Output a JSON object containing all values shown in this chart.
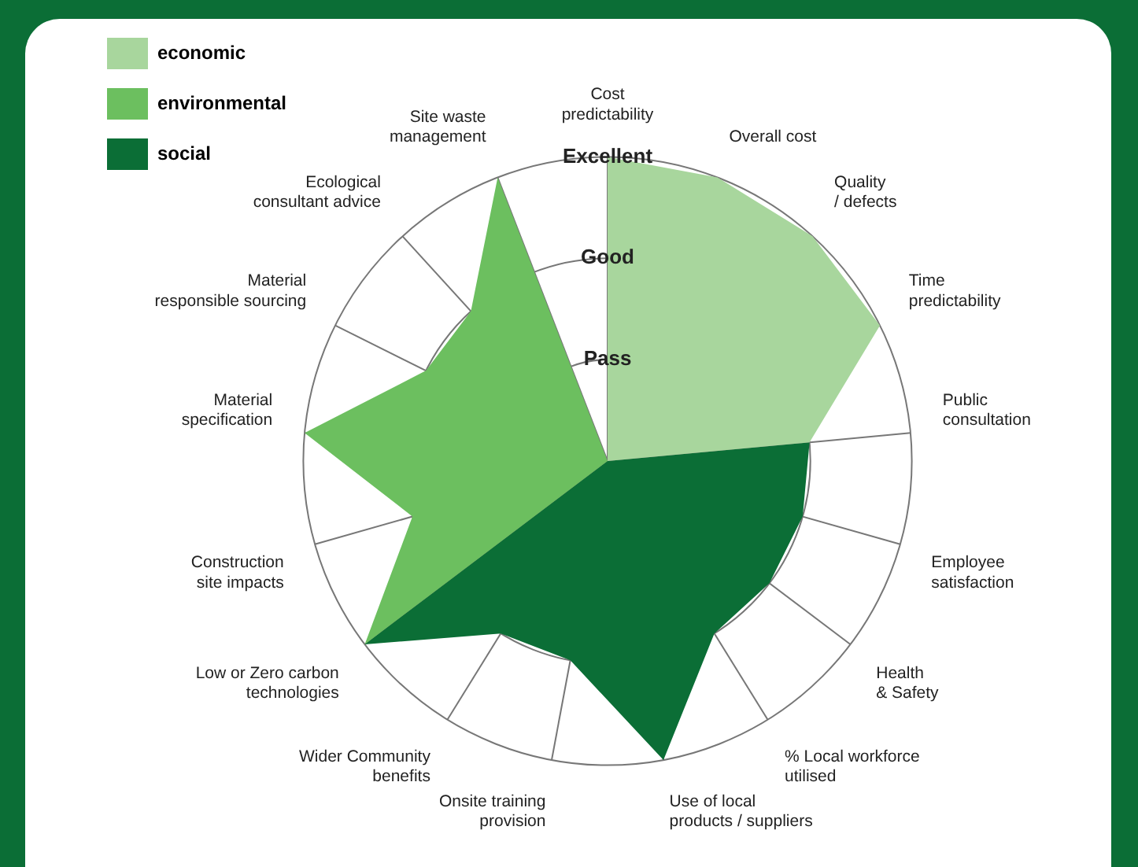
{
  "chart_data": {
    "type": "radar",
    "categories": [
      "Cost predictability",
      "Overall cost",
      "Quality / defects",
      "Time predictability",
      "Public consultation",
      "Employee satisfaction",
      "Health & Safety",
      "% Local workforce utilised",
      "Use of local products / suppliers",
      "Onsite training provision",
      "Wider Community benefits",
      "Low or Zero carbon technologies",
      "Construction site impacts",
      "Material specification",
      "Material responsible sourcing",
      "Ecological consultant advice",
      "Site waste management"
    ],
    "series": [
      {
        "name": "economic",
        "color": "#a8d69d",
        "values": [
          3,
          3,
          3,
          3,
          2,
          0,
          0,
          0,
          0,
          0,
          0,
          0,
          0,
          0,
          0,
          0,
          0
        ]
      },
      {
        "name": "environmental",
        "color": "#6cbf5f",
        "values": [
          0,
          0,
          0,
          0,
          0,
          0,
          0,
          0,
          0,
          0,
          0,
          3,
          2,
          3,
          2,
          2,
          3
        ]
      },
      {
        "name": "social",
        "color": "#0b6e36",
        "values": [
          0,
          0,
          0,
          0,
          2,
          2,
          2,
          2,
          3,
          2,
          2,
          3,
          0,
          0,
          0,
          0,
          0
        ]
      }
    ],
    "ylim": [
      0,
      3
    ],
    "yticks": [
      {
        "value": 1,
        "label": "Pass"
      },
      {
        "value": 2,
        "label": "Good"
      },
      {
        "value": 3,
        "label": "Excellent"
      }
    ],
    "grid": true,
    "legend": "top left"
  }
}
